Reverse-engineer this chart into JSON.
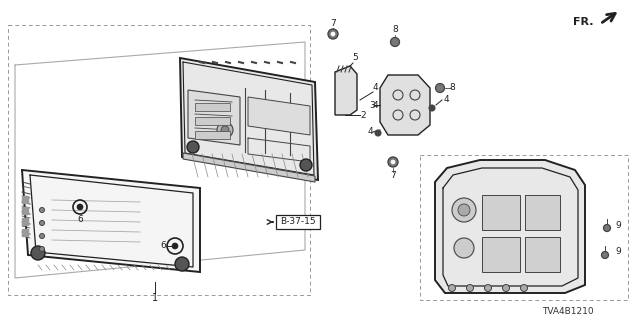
{
  "bg_color": "#ffffff",
  "line_color": "#222222",
  "gray1": "#444444",
  "gray2": "#888888",
  "gray3": "#bbbbbb",
  "part_number_text": "TVA4B1210",
  "fr_label": "FR."
}
